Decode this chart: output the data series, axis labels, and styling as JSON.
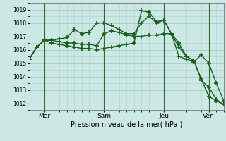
{
  "bg_color": "#cce8e4",
  "grid_color": "#aacfca",
  "line_color": "#1a5c1a",
  "marker": "+",
  "markersize": 4,
  "linewidth": 1.0,
  "markeredgewidth": 1.2,
  "xlabel_text": "Pression niveau de la mer( hPa )",
  "ylim": [
    1011.5,
    1019.5
  ],
  "yticks": [
    1012,
    1013,
    1014,
    1015,
    1016,
    1017,
    1018,
    1019
  ],
  "xtick_labels": [
    "Mer",
    "Sam",
    "Jeu",
    "Ven"
  ],
  "xtick_positions": [
    2,
    10,
    18,
    24
  ],
  "vline_positions": [
    2,
    10,
    18,
    24
  ],
  "n_points": 27,
  "series": [
    [
      1015.3,
      1016.2,
      1016.7,
      1016.7,
      1016.6,
      1016.5,
      1016.5,
      1016.4,
      1016.4,
      1016.3,
      1017.2,
      1017.4,
      1017.3,
      1017.1,
      1017.0,
      1017.0,
      1017.1,
      1017.1,
      1017.2,
      1017.2,
      1015.5,
      1015.3,
      1015.1,
      1015.6,
      1015.0,
      1013.5,
      1012.2
    ],
    [
      1015.3,
      1016.2,
      1016.7,
      1016.7,
      1016.8,
      1016.9,
      1017.5,
      1017.2,
      1017.3,
      1018.0,
      1018.0,
      1017.8,
      1017.5,
      1017.2,
      1017.2,
      1018.0,
      1018.5,
      1018.0,
      1018.2,
      1017.2,
      1016.2,
      1015.5,
      1015.2,
      1013.8,
      1012.5,
      1012.2,
      1011.9
    ],
    [
      1015.3,
      1016.2,
      1016.7,
      1016.5,
      1016.4,
      1016.3,
      1016.2,
      1016.1,
      1016.1,
      1016.0,
      1016.1,
      1016.2,
      1016.3,
      1016.4,
      1016.5,
      1018.9,
      1018.8,
      1018.1,
      1018.2,
      1017.2,
      1016.5,
      1015.5,
      1015.2,
      1013.7,
      1013.2,
      1012.3,
      1011.9
    ]
  ]
}
